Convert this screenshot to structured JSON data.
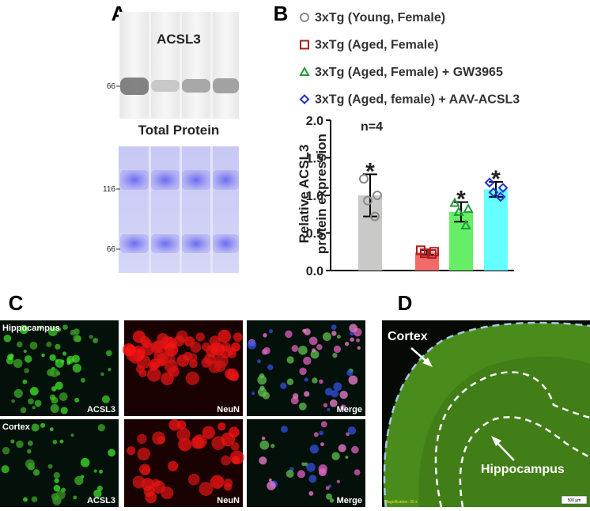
{
  "panels": {
    "a": {
      "label": "A",
      "top_title": "ACSL3",
      "top_ticks": [
        "66"
      ],
      "bottom_title": "Total Protein",
      "bottom_ticks": [
        "116",
        "66"
      ]
    },
    "b": {
      "label": "B"
    },
    "c": {
      "label": "C",
      "rows": [
        {
          "region": "Hippocampus",
          "channels": [
            "ACSL3",
            "NeuN",
            "Merge"
          ]
        },
        {
          "region": "Cortex",
          "channels": [
            "ACSL3",
            "NeuN",
            "Merge"
          ]
        }
      ]
    },
    "d": {
      "label": "D",
      "regions": [
        "Cortex",
        "Hippocampus"
      ],
      "magnification": "Magnification: 20 x",
      "scale_bar": "500 µm"
    }
  },
  "chart_data": {
    "type": "bar",
    "ylabel": [
      "Relative ACSL3",
      "protein expression"
    ],
    "annotation": "n=4",
    "ylim": [
      0,
      2
    ],
    "yticks": [
      {
        "value": 0,
        "label": "0.0"
      },
      {
        "value": 0.5,
        "label": "0.5"
      },
      {
        "value": 1,
        "label": "1.0"
      },
      {
        "value": 1.5,
        "label": "1.5"
      },
      {
        "value": 2,
        "label": "2.0"
      }
    ],
    "series": [
      {
        "name": "3xTg (Young, Female)",
        "color": "#c9c9c7",
        "edge_color": "#8a8a8a",
        "marker": "circle",
        "values": [
          1.0
        ],
        "error": [
          0.28
        ],
        "points": [
          1.22,
          1.0,
          0.93,
          0.72
        ],
        "significance": "*"
      },
      {
        "name": "3xTg (Aged, Female)",
        "color": "#f26b6b",
        "edge_color": "#b01c1c",
        "marker": "square",
        "values": [
          0.24
        ],
        "error": [
          0.03
        ],
        "points": [
          0.27,
          0.25,
          0.23,
          0.22
        ]
      },
      {
        "name": "3xTg (Aged, Female) + GW3965",
        "color": "#66ee66",
        "edge_color": "#1f9a3a",
        "marker": "triangle",
        "values": [
          0.78
        ],
        "error": [
          0.13
        ],
        "points": [
          0.9,
          0.82,
          0.78,
          0.6
        ],
        "significance": "*"
      },
      {
        "name": "3xTg (Aged, female) + AAV-ACSL3",
        "color": "#66ffff",
        "edge_color": "#1f2fd0",
        "marker": "diamond",
        "values": [
          1.08
        ],
        "error": [
          0.1
        ],
        "points": [
          1.17,
          1.1,
          1.04,
          0.98
        ],
        "significance": "*"
      }
    ]
  }
}
